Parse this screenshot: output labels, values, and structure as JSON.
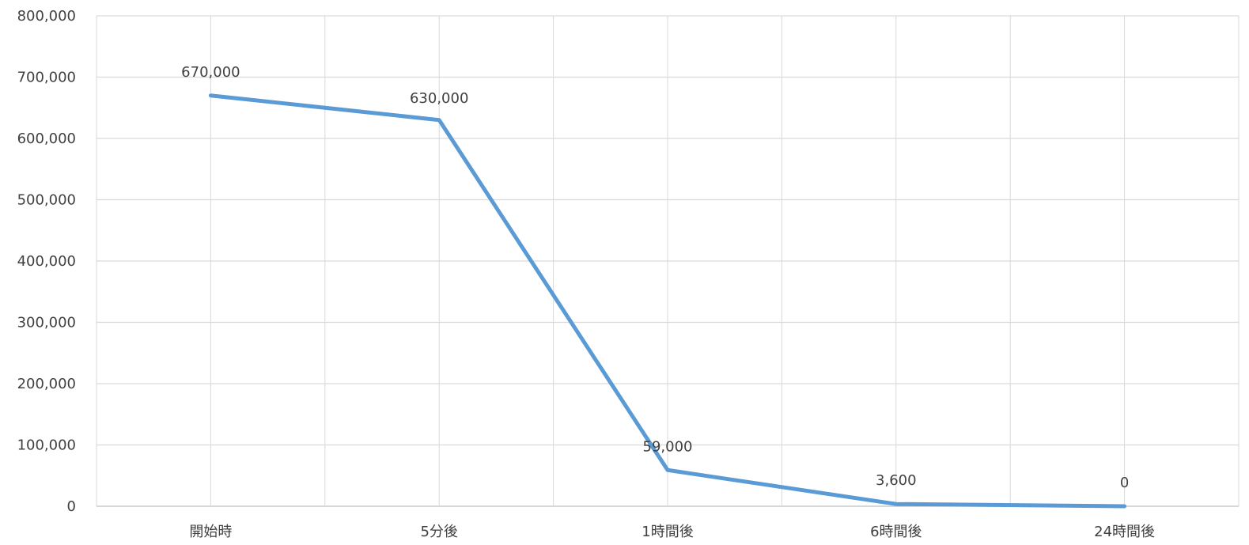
{
  "chart_data": {
    "type": "line",
    "categories": [
      "開始時",
      "5分後",
      "1時間後",
      "6時間後",
      "24時間後"
    ],
    "series": [
      {
        "values": [
          670000,
          630000,
          59000,
          3600,
          0
        ]
      }
    ],
    "data_labels": [
      "670,000",
      "630,000",
      "59,000",
      "3,600",
      "0"
    ],
    "y_ticks": [
      "0",
      "100,000",
      "200,000",
      "300,000",
      "400,000",
      "500,000",
      "600,000",
      "700,000",
      "800,000"
    ],
    "ylim": [
      0,
      800000
    ],
    "y_step": 100000,
    "grid": true,
    "legend": "none",
    "colors": {
      "line": "#5b9bd5",
      "grid": "#d9d9d9",
      "axis": "#bfbfbf",
      "text": "#404040"
    }
  }
}
